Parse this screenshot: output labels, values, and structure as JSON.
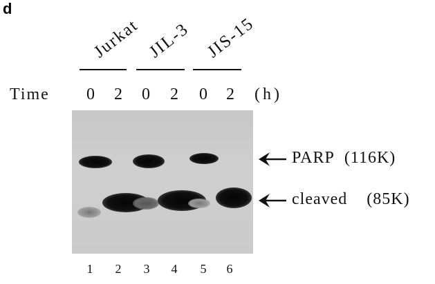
{
  "panel_letter": "d",
  "cell_lines": [
    "Jurkat",
    "JIL-3",
    "JIS-15"
  ],
  "time_label": "Time",
  "time_points": [
    "0",
    "2",
    "0",
    "2",
    "0",
    "2"
  ],
  "time_unit": "(h)",
  "bands": {
    "parp": {
      "name": "PARP",
      "size": "(116K)"
    },
    "cleaved": {
      "name": "cleaved",
      "size": "(85K)"
    }
  },
  "lanes": [
    "1",
    "2",
    "3",
    "4",
    "5",
    "6"
  ]
}
